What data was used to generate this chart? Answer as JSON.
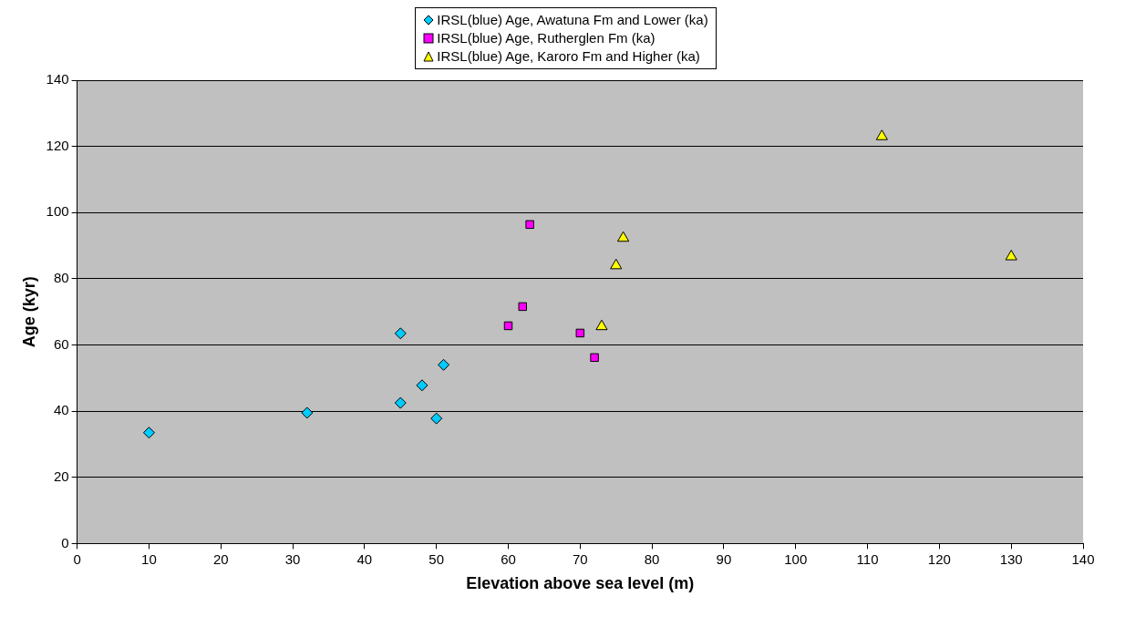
{
  "chart_data": {
    "type": "scatter",
    "xlabel": "Elevation above sea level (m)",
    "ylabel": "Age (kyr)",
    "xlim": [
      0,
      140
    ],
    "xticks": [
      0,
      10,
      20,
      30,
      40,
      50,
      60,
      70,
      80,
      90,
      100,
      110,
      120,
      130,
      140
    ],
    "ylim": [
      0,
      140
    ],
    "yticks": [
      0,
      20,
      40,
      60,
      80,
      100,
      120,
      140
    ],
    "grid": "y",
    "legend": "top",
    "series": [
      {
        "name": "IRSL(blue) Age, Awatuna Fm and Lower (ka)",
        "color": "#00ccff",
        "marker": "diamond",
        "x": [
          10,
          32,
          45,
          45,
          48,
          50,
          51
        ],
        "values": [
          33.5,
          39.5,
          63.5,
          42.5,
          47.8,
          37.8,
          54
        ]
      },
      {
        "name": "IRSL(blue) Age, Rutherglen Fm (ka)",
        "color": "#ff00ff",
        "marker": "square",
        "x": [
          60,
          62,
          63,
          70,
          72
        ],
        "values": [
          65.8,
          71.6,
          96.4,
          63.6,
          56.2
        ]
      },
      {
        "name": "IRSL(blue) Age, Karoro Fm and Higher (ka)",
        "color": "#ffff00",
        "marker": "triangle",
        "x": [
          73,
          75,
          76,
          112,
          130
        ],
        "values": [
          65.6,
          84,
          92.3,
          123,
          86.7
        ]
      }
    ]
  }
}
